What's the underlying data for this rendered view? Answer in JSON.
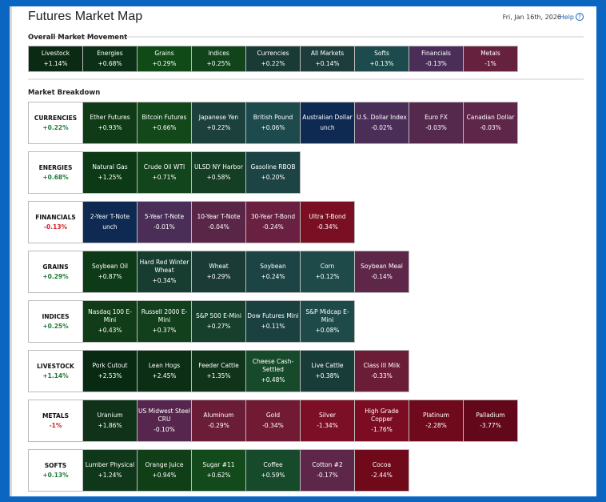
{
  "header": {
    "title": "Futures Market Map",
    "date": "Fri, Jan 16th, 2026",
    "help": "Help",
    "help_icon": "question-circle-icon"
  },
  "overall": {
    "title": "Overall Market Movement",
    "tiles": [
      {
        "name": "Livestock",
        "change": "+1.14%",
        "color": "#0b2a14"
      },
      {
        "name": "Energies",
        "change": "+0.68%",
        "color": "#0c3017"
      },
      {
        "name": "Grains",
        "change": "+0.29%",
        "color": "#0f4a17"
      },
      {
        "name": "Indices",
        "change": "+0.25%",
        "color": "#12441c"
      },
      {
        "name": "Currencies",
        "change": "+0.22%",
        "color": "#1a3a35"
      },
      {
        "name": "All Markets",
        "change": "+0.14%",
        "color": "#1c3d3b"
      },
      {
        "name": "Softs",
        "change": "+0.13%",
        "color": "#1d4a4c"
      },
      {
        "name": "Financials",
        "change": "-0.13%",
        "color": "#4a2e58"
      },
      {
        "name": "Metals",
        "change": "-1%",
        "color": "#66213e"
      }
    ]
  },
  "breakdown": {
    "title": "Market Breakdown",
    "rows": [
      {
        "sector": "CURRENCIES",
        "change": "+0.22%",
        "dir": "pos",
        "tiles": [
          {
            "name": "Ether Futures",
            "change": "+0.93%",
            "color": "#0f3b17"
          },
          {
            "name": "Bitcoin Futures",
            "change": "+0.66%",
            "color": "#12481a"
          },
          {
            "name": "Japanese Yen",
            "change": "+0.22%",
            "color": "#1c403c"
          },
          {
            "name": "British Pound",
            "change": "+0.06%",
            "color": "#1d4a4c"
          },
          {
            "name": "Australian Dollar",
            "change": "unch",
            "color": "#0e2a52"
          },
          {
            "name": "U.S. Dollar Index",
            "change": "-0.02%",
            "color": "#4a2e58"
          },
          {
            "name": "Euro FX",
            "change": "-0.03%",
            "color": "#55294e"
          },
          {
            "name": "Canadian Dollar",
            "change": "-0.03%",
            "color": "#5e2648"
          }
        ]
      },
      {
        "sector": "ENERGIES",
        "change": "+0.68%",
        "dir": "pos",
        "tiles": [
          {
            "name": "Natural Gas",
            "change": "+1.25%",
            "color": "#0d3a16"
          },
          {
            "name": "Crude Oil WTI",
            "change": "+0.71%",
            "color": "#12451b"
          },
          {
            "name": "ULSD NY Harbor",
            "change": "+0.58%",
            "color": "#143f24"
          },
          {
            "name": "Gasoline RBOB",
            "change": "+0.20%",
            "color": "#1c4444"
          }
        ]
      },
      {
        "sector": "FINANCIALS",
        "change": "-0.13%",
        "dir": "neg",
        "tiles": [
          {
            "name": "2-Year T-Note",
            "change": "unch",
            "color": "#0e2a52"
          },
          {
            "name": "5-Year T-Note",
            "change": "-0.01%",
            "color": "#4a2e58"
          },
          {
            "name": "10-Year T-Note",
            "change": "-0.04%",
            "color": "#5a2648"
          },
          {
            "name": "30-Year T-Bond",
            "change": "-0.24%",
            "color": "#6a2040"
          },
          {
            "name": "Ultra T-Bond",
            "change": "-0.34%",
            "color": "#7a0e22"
          }
        ]
      },
      {
        "sector": "GRAINS",
        "change": "+0.29%",
        "dir": "pos",
        "tiles": [
          {
            "name": "Soybean Oil",
            "change": "+0.87%",
            "color": "#0e3b17"
          },
          {
            "name": "Hard Red Winter Wheat",
            "change": "+0.34%",
            "color": "#163d30"
          },
          {
            "name": "Wheat",
            "change": "+0.29%",
            "color": "#1a3b36"
          },
          {
            "name": "Soybean",
            "change": "+0.24%",
            "color": "#1c4444"
          },
          {
            "name": "Corn",
            "change": "+0.12%",
            "color": "#1e4a4a"
          },
          {
            "name": "Soybean Meal",
            "change": "-0.14%",
            "color": "#5e2648"
          }
        ]
      },
      {
        "sector": "INDICES",
        "change": "+0.25%",
        "dir": "pos",
        "tiles": [
          {
            "name": "Nasdaq 100 E-Mini",
            "change": "+0.43%",
            "color": "#103c17"
          },
          {
            "name": "Russell 2000 E-Mini",
            "change": "+0.37%",
            "color": "#12401d"
          },
          {
            "name": "S&P 500 E-Mini",
            "change": "+0.27%",
            "color": "#163f2c"
          },
          {
            "name": "Dow Futures Mini",
            "change": "+0.11%",
            "color": "#1b4040"
          },
          {
            "name": "S&P Midcap E-Mini",
            "change": "+0.08%",
            "color": "#1e4a4a"
          }
        ]
      },
      {
        "sector": "LIVESTOCK",
        "change": "+1.14%",
        "dir": "pos",
        "tiles": [
          {
            "name": "Pork Cutout",
            "change": "+2.53%",
            "color": "#082a12"
          },
          {
            "name": "Lean Hogs",
            "change": "+2.45%",
            "color": "#0b2e15"
          },
          {
            "name": "Feeder Cattle",
            "change": "+1.35%",
            "color": "#10341a"
          },
          {
            "name": "Cheese Cash-Settled",
            "change": "+0.48%",
            "color": "#164a2a"
          },
          {
            "name": "Live Cattle",
            "change": "+0.38%",
            "color": "#183d38"
          },
          {
            "name": "Class III Milk",
            "change": "-0.33%",
            "color": "#6b1c36"
          }
        ]
      },
      {
        "sector": "METALS",
        "change": "-1%",
        "dir": "neg",
        "tiles": [
          {
            "name": "Uranium",
            "change": "+1.86%",
            "color": "#0f3218"
          },
          {
            "name": "US Midwest Steel CRU",
            "change": "-0.10%",
            "color": "#56264e"
          },
          {
            "name": "Aluminum",
            "change": "-0.29%",
            "color": "#6b1c36"
          },
          {
            "name": "Gold",
            "change": "-0.34%",
            "color": "#701a34"
          },
          {
            "name": "Silver",
            "change": "-1.34%",
            "color": "#7c0e26"
          },
          {
            "name": "High Grade Copper",
            "change": "-1.76%",
            "color": "#7c0c22"
          },
          {
            "name": "Platinum",
            "change": "-2.28%",
            "color": "#6e0a1c"
          },
          {
            "name": "Palladium",
            "change": "-3.77%",
            "color": "#62081a"
          }
        ]
      },
      {
        "sector": "SOFTS",
        "change": "+0.13%",
        "dir": "pos",
        "tiles": [
          {
            "name": "Lumber Physical",
            "change": "+1.24%",
            "color": "#0f3719"
          },
          {
            "name": "Orange Juice",
            "change": "+0.94%",
            "color": "#0f3e17"
          },
          {
            "name": "Sugar #11",
            "change": "+0.62%",
            "color": "#124a1b"
          },
          {
            "name": "Coffee",
            "change": "+0.59%",
            "color": "#164a2a"
          },
          {
            "name": "Cotton #2",
            "change": "-0.17%",
            "color": "#5e2648"
          },
          {
            "name": "Cocoa",
            "change": "-2.44%",
            "color": "#700a1a"
          }
        ]
      }
    ]
  }
}
